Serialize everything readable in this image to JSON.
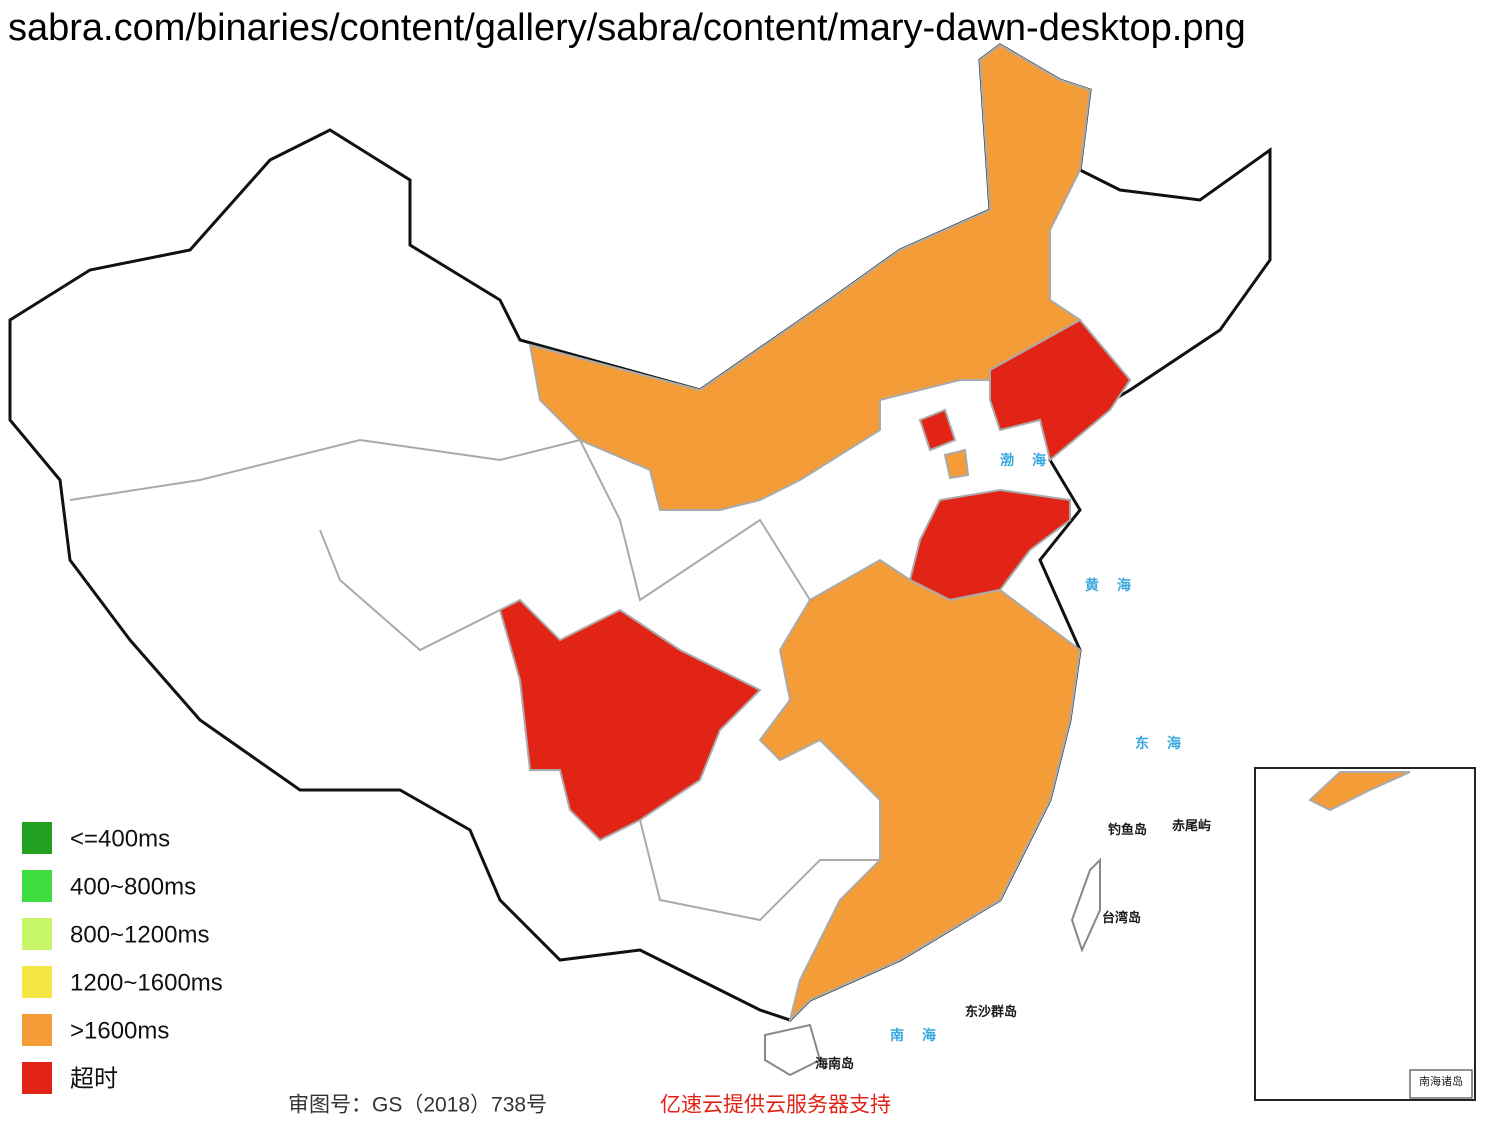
{
  "title": "sabra.com/binaries/content/gallery/sabra/content/mary-dawn-desktop.png",
  "legend": [
    {
      "label": "<=400ms",
      "color": "#22a020"
    },
    {
      "label": "400~800ms",
      "color": "#3fdc3f"
    },
    {
      "label": "800~1200ms",
      "color": "#c6f56a"
    },
    {
      "label": "1200~1600ms",
      "color": "#f5e642"
    },
    {
      "label": ">1600ms",
      "color": "#f39c38"
    },
    {
      "label": "超时",
      "color": "#e22416"
    }
  ],
  "sea_labels": [
    "渤海",
    "黄海",
    "东海",
    "南海"
  ],
  "island_labels": [
    "台湾岛",
    "海南岛",
    "东沙群岛",
    "钓鱼岛",
    "赤尾屿"
  ],
  "inset_label": "南海诸岛",
  "footer": {
    "approval": "审图号：GS（2018）738号",
    "sponsor": "亿速云提供云服务器支持"
  }
}
